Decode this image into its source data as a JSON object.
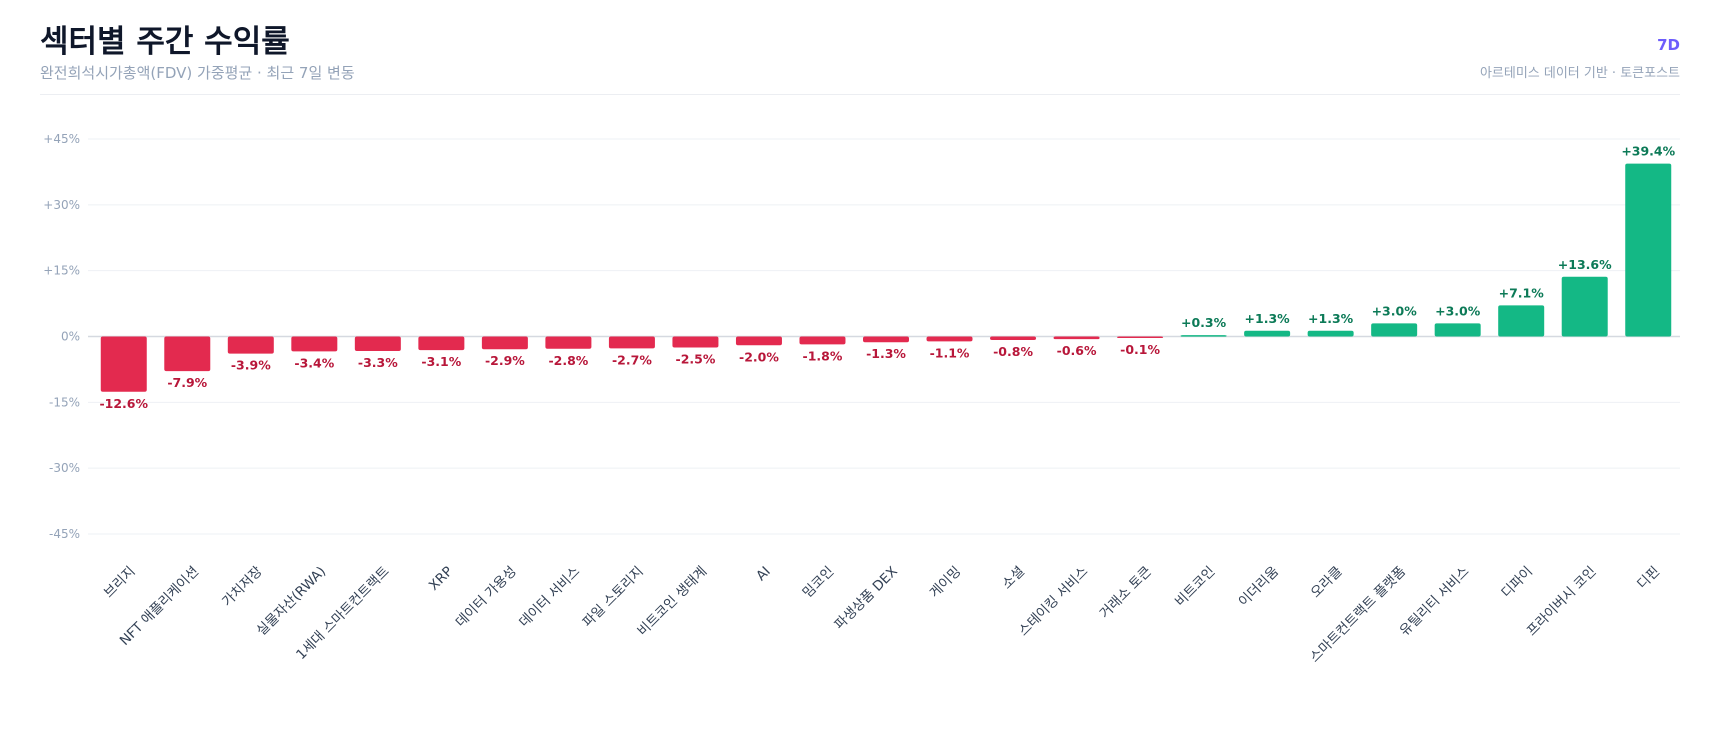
{
  "header": {
    "title": "섹터별 주간 수익률",
    "subtitle": "완전희석시가총액(FDV) 가중평균 · 최근 7일 변동",
    "period": "7D",
    "source": "아르테미스 데이터 기반 · 토큰포스트"
  },
  "colors": {
    "positive": "#14b885",
    "negative": "#e32a4f",
    "positive_label": "#0c7a57",
    "negative_label": "#b8173a",
    "grid": "#eef0f4",
    "zero_line": "#d5d9e0",
    "tick_text": "#94a3b8",
    "category_text": "#334155"
  },
  "chart_data": {
    "type": "bar",
    "title": "",
    "xlabel": "",
    "ylabel": "",
    "ylim": [
      -45,
      45
    ],
    "yticks": [
      45,
      30,
      15,
      0,
      -15,
      -30,
      -45
    ],
    "ytick_labels": [
      "+45%",
      "+30%",
      "+15%",
      "0%",
      "-15%",
      "-30%",
      "-45%"
    ],
    "grid": true,
    "legend": "none",
    "categories": [
      "브리지",
      "NFT 애플리케이션",
      "가치저장",
      "실물자산(RWA)",
      "1세대 스마트컨트랙트",
      "XRP",
      "데이터 가용성",
      "데이터 서비스",
      "파일 스토리지",
      "비트코인 생태계",
      "AI",
      "밈코인",
      "파생상품 DEX",
      "게이밍",
      "소셜",
      "스테이킹 서비스",
      "거래소 토큰",
      "비트코인",
      "이더리움",
      "오라클",
      "스마트컨트랙트 플랫폼",
      "유틸리티 서비스",
      "디파이",
      "프라이버시 코인",
      "디핀"
    ],
    "values": [
      -12.6,
      -7.9,
      -3.9,
      -3.4,
      -3.3,
      -3.1,
      -2.9,
      -2.8,
      -2.7,
      -2.5,
      -2.0,
      -1.8,
      -1.3,
      -1.1,
      -0.8,
      -0.6,
      -0.1,
      0.3,
      1.3,
      1.3,
      3.0,
      3.0,
      7.1,
      13.6,
      39.4
    ],
    "value_labels": [
      "-12.6%",
      "-7.9%",
      "-3.9%",
      "-3.4%",
      "-3.3%",
      "-3.1%",
      "-2.9%",
      "-2.8%",
      "-2.7%",
      "-2.5%",
      "-2.0%",
      "-1.8%",
      "-1.3%",
      "-1.1%",
      "-0.8%",
      "-0.6%",
      "-0.1%",
      "+0.3%",
      "+1.3%",
      "+1.3%",
      "+3.0%",
      "+3.0%",
      "+7.1%",
      "+13.6%",
      "+39.4%"
    ]
  }
}
